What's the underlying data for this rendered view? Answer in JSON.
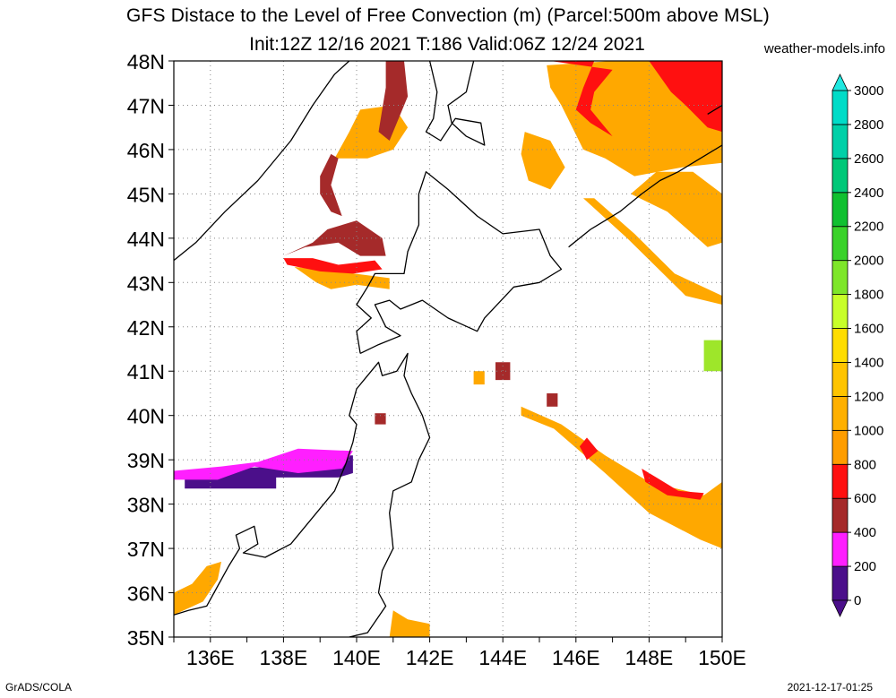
{
  "title": "GFS Distace to the Level of Free Convection (m) (Parcel:500m above MSL)",
  "subtitle": "Init:12Z 12/16 2021 T:186 Valid:06Z 12/24 2021",
  "site": "weather-models.info",
  "footer_left": "GrADS/COLA",
  "footer_right": "2021-12-17-01:25",
  "map": {
    "lat_range": [
      35,
      48
    ],
    "lon_range": [
      135,
      150
    ],
    "lat_labels": [
      "35N",
      "36N",
      "37N",
      "38N",
      "39N",
      "40N",
      "41N",
      "42N",
      "43N",
      "44N",
      "45N",
      "46N",
      "47N",
      "48N"
    ],
    "lon_labels": [
      "136E",
      "138E",
      "140E",
      "142E",
      "144E",
      "146E",
      "148E",
      "150E"
    ],
    "lon_label_values": [
      136,
      138,
      140,
      142,
      144,
      146,
      148,
      150
    ]
  },
  "colorbar": {
    "labels": [
      "0",
      "200",
      "400",
      "600",
      "800",
      "1000",
      "1200",
      "1400",
      "1600",
      "1800",
      "2000",
      "2200",
      "2400",
      "2600",
      "2800",
      "3000"
    ],
    "colors": [
      "#4b0f8a",
      "#ff1fff",
      "#a52a2a",
      "#ff1010",
      "#ff9d00",
      "#ffb000",
      "#ffc400",
      "#ffdd00",
      "#c8ff2a",
      "#7ee62a",
      "#3ad22a",
      "#10c030",
      "#00c878",
      "#00d0a8",
      "#00dcc8",
      "#00e8e0"
    ],
    "top_color": "#20e8e0",
    "bottom_color": "#4b0f8a"
  },
  "regions": [
    {
      "name": "sea-of-japan-low-band",
      "color": "#4b0f8a",
      "points": [
        [
          135.3,
          38.35
        ],
        [
          137.8,
          38.35
        ],
        [
          137.8,
          38.6
        ],
        [
          139.5,
          38.6
        ],
        [
          139.9,
          38.7
        ],
        [
          139.9,
          39.1
        ],
        [
          139.5,
          39.1
        ],
        [
          137.9,
          38.85
        ],
        [
          136.4,
          38.8
        ],
        [
          135.3,
          38.6
        ]
      ]
    },
    {
      "name": "sea-of-japan-magenta",
      "color": "#ff1fff",
      "points": [
        [
          135.0,
          38.55
        ],
        [
          136.2,
          38.55
        ],
        [
          137.2,
          38.85
        ],
        [
          138.4,
          38.7
        ],
        [
          139.6,
          38.8
        ],
        [
          139.9,
          39.2
        ],
        [
          138.4,
          39.25
        ],
        [
          137.3,
          38.95
        ],
        [
          136.3,
          38.85
        ],
        [
          135.0,
          38.75
        ]
      ]
    },
    {
      "name": "sw-orange-patch",
      "color": "#ffa800",
      "points": [
        [
          135.0,
          35.5
        ],
        [
          135.8,
          35.8
        ],
        [
          136.2,
          36.3
        ],
        [
          136.3,
          36.7
        ],
        [
          135.9,
          36.6
        ],
        [
          135.5,
          36.2
        ],
        [
          135.0,
          36.0
        ]
      ]
    },
    {
      "name": "hokkaido-west-orange",
      "color": "#ffa800",
      "points": [
        [
          138.3,
          43.35
        ],
        [
          139.0,
          43.3
        ],
        [
          140.9,
          43.1
        ],
        [
          140.9,
          42.85
        ],
        [
          140.0,
          42.95
        ],
        [
          139.3,
          42.85
        ],
        [
          138.9,
          43.0
        ]
      ]
    },
    {
      "name": "hokkaido-west-red",
      "color": "#ff1010",
      "points": [
        [
          138.0,
          43.55
        ],
        [
          138.8,
          43.55
        ],
        [
          139.5,
          43.4
        ],
        [
          140.5,
          43.5
        ],
        [
          140.7,
          43.3
        ],
        [
          139.9,
          43.2
        ],
        [
          139.0,
          43.25
        ],
        [
          138.1,
          43.4
        ]
      ]
    },
    {
      "name": "hokkaido-west-brown",
      "color": "#a52a2a",
      "points": [
        [
          138.0,
          43.6
        ],
        [
          138.8,
          43.9
        ],
        [
          139.2,
          44.2
        ],
        [
          140.0,
          44.4
        ],
        [
          140.7,
          44.0
        ],
        [
          140.8,
          43.6
        ],
        [
          140.1,
          43.6
        ],
        [
          139.5,
          43.9
        ],
        [
          138.6,
          43.8
        ]
      ]
    },
    {
      "name": "hokkaido-north-orange",
      "color": "#ffa800",
      "points": [
        [
          139.4,
          45.8
        ],
        [
          139.8,
          46.4
        ],
        [
          140.1,
          46.9
        ],
        [
          141.0,
          47.0
        ],
        [
          141.4,
          46.5
        ],
        [
          141.0,
          46.0
        ],
        [
          140.3,
          45.8
        ]
      ]
    },
    {
      "name": "hokkaido-north-brown",
      "color": "#a52a2a",
      "points": [
        [
          140.8,
          47.4
        ],
        [
          140.8,
          48.0
        ],
        [
          141.3,
          48.0
        ],
        [
          141.4,
          47.2
        ],
        [
          140.9,
          46.2
        ],
        [
          140.6,
          46.4
        ]
      ]
    },
    {
      "name": "hokkaido-rim-brown",
      "color": "#a52a2a",
      "points": [
        [
          139.0,
          45.4
        ],
        [
          139.3,
          45.9
        ],
        [
          139.5,
          45.8
        ],
        [
          139.3,
          45.2
        ],
        [
          139.6,
          44.5
        ],
        [
          139.3,
          44.6
        ],
        [
          139.0,
          45.0
        ]
      ]
    },
    {
      "name": "kurile-orange-main",
      "color": "#ffa800",
      "points": [
        [
          145.2,
          47.9
        ],
        [
          147.0,
          48.0
        ],
        [
          150.0,
          48.0
        ],
        [
          150.0,
          45.7
        ],
        [
          148.9,
          45.6
        ],
        [
          147.6,
          45.4
        ],
        [
          146.8,
          45.8
        ],
        [
          146.2,
          46.0
        ],
        [
          145.6,
          47.0
        ],
        [
          145.3,
          47.4
        ]
      ]
    },
    {
      "name": "kurile-red",
      "color": "#ff1010",
      "points": [
        [
          145.3,
          48.0
        ],
        [
          146.5,
          48.0
        ],
        [
          146.2,
          47.4
        ],
        [
          146.0,
          46.9
        ],
        [
          146.4,
          46.6
        ],
        [
          147.0,
          46.3
        ],
        [
          146.4,
          46.9
        ],
        [
          146.5,
          47.3
        ],
        [
          147.0,
          47.8
        ]
      ]
    },
    {
      "name": "kurile-red-east",
      "color": "#ff1010",
      "points": [
        [
          148.0,
          48.0
        ],
        [
          150.0,
          48.0
        ],
        [
          150.0,
          46.4
        ],
        [
          149.6,
          46.5
        ],
        [
          149.0,
          47.0
        ],
        [
          148.6,
          47.3
        ]
      ]
    },
    {
      "name": "okhotsk-orange",
      "color": "#ffa800",
      "points": [
        [
          144.6,
          46.4
        ],
        [
          145.3,
          46.2
        ],
        [
          145.7,
          45.6
        ],
        [
          145.3,
          45.1
        ],
        [
          144.7,
          45.3
        ],
        [
          144.5,
          45.9
        ]
      ]
    },
    {
      "name": "east-hokkaido-orange",
      "color": "#ffa800",
      "points": [
        [
          147.5,
          45.0
        ],
        [
          148.5,
          44.6
        ],
        [
          149.6,
          43.8
        ],
        [
          150.0,
          43.9
        ],
        [
          150.0,
          45.0
        ],
        [
          149.2,
          45.5
        ],
        [
          148.2,
          45.5
        ]
      ]
    },
    {
      "name": "kurile-diagonal",
      "color": "#ffa800",
      "points": [
        [
          146.2,
          44.9
        ],
        [
          147.4,
          44.0
        ],
        [
          149.0,
          42.7
        ],
        [
          150.0,
          42.5
        ],
        [
          150.0,
          42.7
        ],
        [
          148.7,
          43.2
        ],
        [
          147.6,
          44.1
        ],
        [
          146.5,
          44.9
        ]
      ]
    },
    {
      "name": "pacific-diagonal-orange",
      "color": "#ffa800",
      "points": [
        [
          144.5,
          40.2
        ],
        [
          145.6,
          39.8
        ],
        [
          146.8,
          39.1
        ],
        [
          148.0,
          38.5
        ],
        [
          149.5,
          38.2
        ],
        [
          150.0,
          38.5
        ],
        [
          150.0,
          37.0
        ],
        [
          149.4,
          37.2
        ],
        [
          148.0,
          37.8
        ],
        [
          146.8,
          38.7
        ],
        [
          145.4,
          39.7
        ],
        [
          144.5,
          40.0
        ]
      ]
    },
    {
      "name": "pacific-diagonal-red",
      "color": "#ff1010",
      "points": [
        [
          146.3,
          39.5
        ],
        [
          146.6,
          39.2
        ],
        [
          146.3,
          39.0
        ],
        [
          146.1,
          39.3
        ]
      ]
    },
    {
      "name": "pacific-red-2",
      "color": "#ff1010",
      "points": [
        [
          147.8,
          38.8
        ],
        [
          148.2,
          38.6
        ],
        [
          148.8,
          38.3
        ],
        [
          149.5,
          38.25
        ],
        [
          149.4,
          38.1
        ],
        [
          148.5,
          38.2
        ],
        [
          147.9,
          38.5
        ]
      ]
    },
    {
      "name": "pacific-brown",
      "color": "#a52a2a",
      "points": [
        [
          145.2,
          40.5
        ],
        [
          145.5,
          40.5
        ],
        [
          145.5,
          40.2
        ],
        [
          145.2,
          40.2
        ]
      ]
    },
    {
      "name": "green-patch",
      "color": "#9ee62a",
      "points": [
        [
          149.5,
          41.0
        ],
        [
          150.0,
          41.0
        ],
        [
          150.0,
          41.7
        ],
        [
          149.5,
          41.7
        ]
      ]
    },
    {
      "name": "small-brown-40n",
      "color": "#a52a2a",
      "points": [
        [
          140.5,
          39.8
        ],
        [
          140.8,
          39.8
        ],
        [
          140.8,
          40.05
        ],
        [
          140.5,
          40.05
        ]
      ]
    },
    {
      "name": "south-orange-patch",
      "color": "#ffa800",
      "points": [
        [
          140.9,
          35.0
        ],
        [
          142.0,
          35.0
        ],
        [
          142.0,
          35.3
        ],
        [
          141.4,
          35.4
        ],
        [
          141.0,
          35.6
        ]
      ]
    },
    {
      "name": "small-red-41n",
      "color": "#a52a2a",
      "points": [
        [
          143.8,
          40.8
        ],
        [
          144.2,
          40.8
        ],
        [
          144.2,
          41.2
        ],
        [
          143.8,
          41.2
        ]
      ]
    },
    {
      "name": "small-orange-41n",
      "color": "#ffa800",
      "points": [
        [
          143.2,
          40.7
        ],
        [
          143.5,
          40.7
        ],
        [
          143.5,
          41.0
        ],
        [
          143.2,
          41.0
        ]
      ]
    }
  ],
  "coastlines": [
    {
      "name": "honshu-west-coast",
      "points": [
        [
          135.0,
          35.5
        ],
        [
          135.4,
          35.6
        ],
        [
          135.9,
          35.7
        ],
        [
          136.1,
          36.0
        ],
        [
          136.5,
          36.6
        ],
        [
          136.8,
          37.0
        ],
        [
          136.7,
          37.3
        ],
        [
          137.2,
          37.5
        ],
        [
          137.3,
          37.1
        ],
        [
          136.9,
          36.9
        ],
        [
          137.5,
          36.8
        ],
        [
          138.2,
          37.1
        ],
        [
          138.6,
          37.5
        ],
        [
          139.0,
          37.9
        ],
        [
          139.4,
          38.3
        ],
        [
          139.7,
          38.9
        ],
        [
          139.9,
          39.4
        ],
        [
          140.0,
          39.8
        ],
        [
          139.8,
          40.0
        ],
        [
          140.0,
          40.6
        ],
        [
          140.3,
          40.9
        ],
        [
          140.6,
          41.2
        ],
        [
          140.7,
          40.9
        ],
        [
          141.1,
          41.0
        ],
        [
          141.4,
          41.4
        ],
        [
          141.3,
          40.9
        ],
        [
          141.5,
          40.5
        ],
        [
          141.8,
          40.0
        ],
        [
          142.0,
          39.5
        ],
        [
          141.7,
          39.0
        ],
        [
          141.5,
          38.5
        ],
        [
          141.0,
          38.3
        ],
        [
          140.9,
          37.8
        ],
        [
          141.0,
          37.0
        ],
        [
          140.7,
          36.5
        ],
        [
          140.6,
          36.0
        ],
        [
          140.8,
          35.7
        ],
        [
          140.3,
          35.1
        ],
        [
          139.8,
          35.0
        ]
      ]
    },
    {
      "name": "hokkaido-coast",
      "points": [
        [
          140.1,
          41.4
        ],
        [
          140.0,
          41.9
        ],
        [
          140.4,
          42.2
        ],
        [
          140.0,
          42.5
        ],
        [
          140.3,
          42.9
        ],
        [
          140.5,
          43.2
        ],
        [
          141.3,
          43.2
        ],
        [
          141.4,
          43.7
        ],
        [
          141.7,
          44.3
        ],
        [
          141.7,
          45.0
        ],
        [
          141.9,
          45.5
        ],
        [
          142.5,
          45.1
        ],
        [
          143.3,
          44.5
        ],
        [
          144.0,
          44.1
        ],
        [
          145.0,
          44.2
        ],
        [
          145.3,
          43.6
        ],
        [
          145.6,
          43.3
        ],
        [
          145.0,
          43.0
        ],
        [
          144.3,
          42.9
        ],
        [
          143.5,
          42.2
        ],
        [
          143.3,
          41.9
        ],
        [
          142.5,
          42.2
        ],
        [
          141.8,
          42.6
        ],
        [
          141.2,
          42.4
        ],
        [
          140.9,
          42.6
        ],
        [
          140.5,
          42.5
        ],
        [
          140.8,
          42.0
        ],
        [
          141.2,
          41.8
        ],
        [
          140.6,
          41.6
        ],
        [
          140.1,
          41.4
        ]
      ]
    },
    {
      "name": "sakhalin-coast",
      "points": [
        [
          142.0,
          48.0
        ],
        [
          142.2,
          47.3
        ],
        [
          142.1,
          46.7
        ],
        [
          141.9,
          46.4
        ],
        [
          142.3,
          46.2
        ],
        [
          142.7,
          46.7
        ],
        [
          143.4,
          46.6
        ],
        [
          143.5,
          46.1
        ],
        [
          143.0,
          46.3
        ],
        [
          142.6,
          46.6
        ],
        [
          142.5,
          47.0
        ],
        [
          143.0,
          47.3
        ],
        [
          143.2,
          48.0
        ]
      ]
    },
    {
      "name": "continent-coast",
      "points": [
        [
          135.0,
          43.5
        ],
        [
          135.6,
          43.9
        ],
        [
          136.4,
          44.6
        ],
        [
          137.3,
          45.3
        ],
        [
          138.2,
          46.2
        ],
        [
          138.8,
          47.0
        ],
        [
          139.4,
          47.7
        ],
        [
          139.8,
          48.0
        ]
      ]
    },
    {
      "name": "kurile-chain",
      "points": [
        [
          145.8,
          43.8
        ],
        [
          146.4,
          44.2
        ],
        [
          147.2,
          44.6
        ],
        [
          147.8,
          45.0
        ],
        [
          148.3,
          45.3
        ],
        [
          148.8,
          45.5
        ],
        [
          149.4,
          45.8
        ],
        [
          150.0,
          46.1
        ]
      ]
    },
    {
      "name": "kurile-north",
      "points": [
        [
          149.6,
          46.8
        ],
        [
          150.0,
          47.0
        ]
      ]
    }
  ]
}
